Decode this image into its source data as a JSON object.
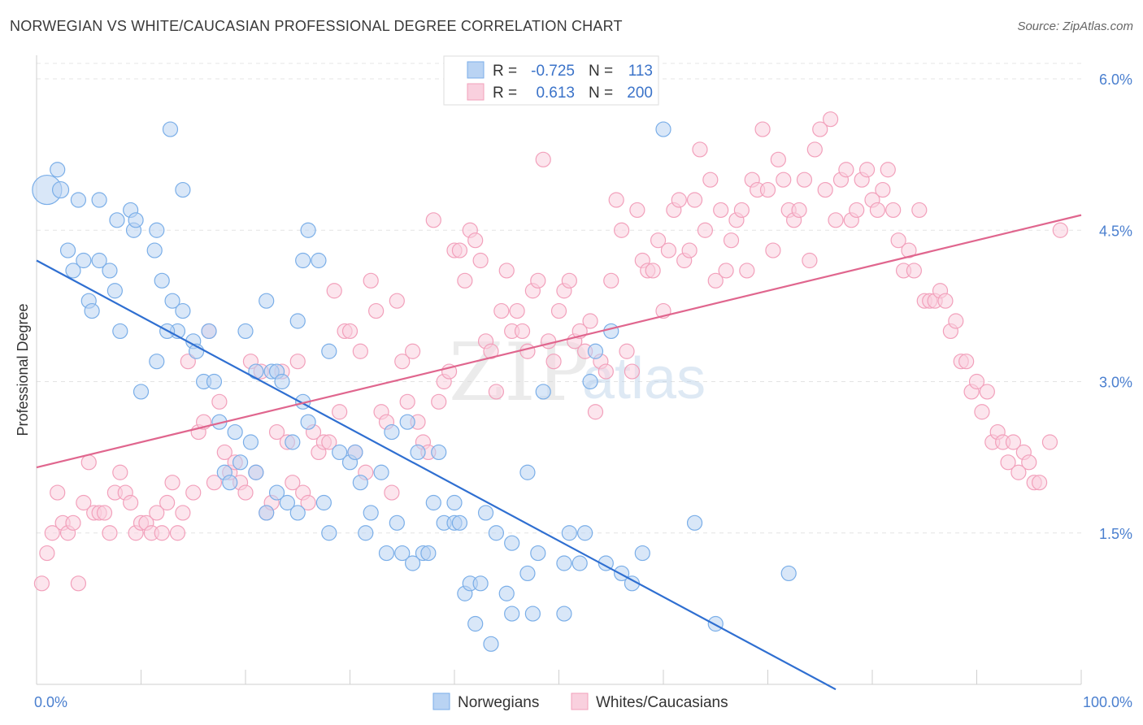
{
  "chart_data": {
    "type": "scatter",
    "title": "NORWEGIAN VS WHITE/CAUCASIAN PROFESSIONAL DEGREE CORRELATION CHART",
    "source": "Source: ZipAtlas.com",
    "ylabel": "Professional Degree",
    "xlim": [
      0,
      100
    ],
    "ylim": [
      0,
      6.2
    ],
    "x_tick_labels": [
      "0.0%",
      "100.0%"
    ],
    "y_ticks": [
      1.5,
      3.0,
      4.5,
      6.0
    ],
    "y_tick_labels": [
      "1.5%",
      "3.0%",
      "4.5%",
      "6.0%"
    ],
    "grid": "horizontal dashed",
    "watermark": {
      "zip": "ZIP",
      "atlas": "atlas"
    },
    "legend": {
      "placement": "top-center",
      "rows": [
        {
          "r_label": "R =",
          "r_value": "-0.725",
          "n_label": "N =",
          "n_value": "113"
        },
        {
          "r_label": "R =",
          "r_value": "0.613",
          "n_label": "N =",
          "n_value": "200"
        }
      ]
    },
    "series": [
      {
        "name": "Norwegians",
        "color": "#7aaee8",
        "fill": "#b9d3f3",
        "trend": {
          "x": [
            0,
            76.5
          ],
          "y": [
            4.2,
            -0.05
          ],
          "color": "#2f6fd1"
        },
        "points": [
          [
            1,
            4.9
          ],
          [
            2,
            5.1
          ],
          [
            2.3,
            4.9
          ],
          [
            4,
            4.8
          ],
          [
            6,
            4.8
          ],
          [
            3,
            4.3
          ],
          [
            3.5,
            4.1
          ],
          [
            4.5,
            4.2
          ],
          [
            6,
            4.2
          ],
          [
            7,
            4.1
          ],
          [
            5,
            3.8
          ],
          [
            5.3,
            3.7
          ],
          [
            7.5,
            3.9
          ],
          [
            8,
            3.5
          ],
          [
            7.7,
            4.6
          ],
          [
            9,
            4.7
          ],
          [
            9.3,
            4.5
          ],
          [
            9.5,
            4.6
          ],
          [
            11.5,
            4.5
          ],
          [
            11.3,
            4.3
          ],
          [
            12,
            4.0
          ],
          [
            13,
            3.8
          ],
          [
            14,
            3.7
          ],
          [
            13.5,
            3.5
          ],
          [
            15,
            3.4
          ],
          [
            15.3,
            3.3
          ],
          [
            16,
            3.0
          ],
          [
            16.5,
            3.5
          ],
          [
            17,
            3.0
          ],
          [
            10,
            2.9
          ],
          [
            11.5,
            3.2
          ],
          [
            12.5,
            3.5
          ],
          [
            12.8,
            5.5
          ],
          [
            14,
            4.9
          ],
          [
            20,
            3.5
          ],
          [
            21,
            3.1
          ],
          [
            22,
            3.8
          ],
          [
            22.5,
            3.1
          ],
          [
            25,
            3.6
          ],
          [
            25.5,
            4.2
          ],
          [
            26,
            4.5
          ],
          [
            27,
            4.2
          ],
          [
            28,
            3.3
          ],
          [
            23,
            3.1
          ],
          [
            23.5,
            3.0
          ],
          [
            25.5,
            2.8
          ],
          [
            19,
            2.5
          ],
          [
            20.5,
            2.4
          ],
          [
            21,
            2.1
          ],
          [
            17.5,
            2.6
          ],
          [
            18,
            2.1
          ],
          [
            18.5,
            2.0
          ],
          [
            19.5,
            2.2
          ],
          [
            22,
            1.7
          ],
          [
            23,
            1.9
          ],
          [
            24,
            1.8
          ],
          [
            24.5,
            2.4
          ],
          [
            25,
            1.7
          ],
          [
            26,
            2.6
          ],
          [
            27.5,
            1.8
          ],
          [
            28,
            1.5
          ],
          [
            29,
            2.3
          ],
          [
            30,
            2.2
          ],
          [
            30.5,
            2.3
          ],
          [
            31,
            2.0
          ],
          [
            31.5,
            1.5
          ],
          [
            32,
            1.7
          ],
          [
            33,
            2.1
          ],
          [
            33.5,
            1.3
          ],
          [
            34,
            2.5
          ],
          [
            34.5,
            1.6
          ],
          [
            35,
            1.3
          ],
          [
            35.5,
            2.6
          ],
          [
            36,
            1.2
          ],
          [
            36.5,
            2.3
          ],
          [
            37,
            1.3
          ],
          [
            37.5,
            1.3
          ],
          [
            38,
            1.8
          ],
          [
            38.5,
            2.3
          ],
          [
            39,
            1.6
          ],
          [
            40,
            1.6
          ],
          [
            40,
            1.8
          ],
          [
            40.5,
            1.6
          ],
          [
            41,
            0.9
          ],
          [
            41.5,
            1.0
          ],
          [
            42,
            0.6
          ],
          [
            42.5,
            1.0
          ],
          [
            43,
            1.7
          ],
          [
            43.5,
            0.4
          ],
          [
            44,
            1.5
          ],
          [
            45,
            0.9
          ],
          [
            45.5,
            0.7
          ],
          [
            45.5,
            1.4
          ],
          [
            47,
            1.1
          ],
          [
            47,
            2.1
          ],
          [
            47.5,
            0.7
          ],
          [
            48,
            1.3
          ],
          [
            48.5,
            2.9
          ],
          [
            50.5,
            0.7
          ],
          [
            50.5,
            1.2
          ],
          [
            51,
            1.5
          ],
          [
            52,
            1.2
          ],
          [
            52.5,
            1.5
          ],
          [
            53,
            3.0
          ],
          [
            53.5,
            3.3
          ],
          [
            54.5,
            1.2
          ],
          [
            55,
            3.5
          ],
          [
            56,
            1.1
          ],
          [
            57,
            1.0
          ],
          [
            58,
            1.3
          ],
          [
            60,
            5.5
          ],
          [
            63,
            1.6
          ],
          [
            65,
            0.6
          ],
          [
            72,
            1.1
          ]
        ],
        "sizes": {
          "0": 18,
          "2": 10
        }
      },
      {
        "name": "Whites/Caucasians",
        "color": "#f2a0bb",
        "fill": "#f9d0de",
        "trend": {
          "x": [
            0,
            100
          ],
          "y": [
            2.15,
            4.65
          ],
          "color": "#e0668e"
        },
        "points": [
          [
            0.5,
            1.0
          ],
          [
            1,
            1.3
          ],
          [
            1.5,
            1.5
          ],
          [
            2,
            1.9
          ],
          [
            2.5,
            1.6
          ],
          [
            3,
            1.5
          ],
          [
            3.5,
            1.6
          ],
          [
            4,
            1.0
          ],
          [
            4.5,
            1.8
          ],
          [
            5,
            2.2
          ],
          [
            5.5,
            1.7
          ],
          [
            6,
            1.7
          ],
          [
            6.5,
            1.7
          ],
          [
            7,
            1.5
          ],
          [
            7.5,
            1.9
          ],
          [
            8,
            2.1
          ],
          [
            8.5,
            1.9
          ],
          [
            9,
            1.8
          ],
          [
            9.5,
            1.5
          ],
          [
            10,
            1.6
          ],
          [
            10.5,
            1.6
          ],
          [
            11,
            1.5
          ],
          [
            11.5,
            1.7
          ],
          [
            12,
            1.5
          ],
          [
            12.5,
            1.8
          ],
          [
            13,
            2.0
          ],
          [
            13.5,
            1.5
          ],
          [
            14,
            1.7
          ],
          [
            14.5,
            3.2
          ],
          [
            15,
            1.9
          ],
          [
            15.5,
            2.5
          ],
          [
            16,
            2.6
          ],
          [
            16.5,
            3.5
          ],
          [
            17,
            2.0
          ],
          [
            17.5,
            2.8
          ],
          [
            18,
            2.3
          ],
          [
            18.5,
            2.1
          ],
          [
            19,
            2.2
          ],
          [
            19.5,
            2.0
          ],
          [
            20,
            1.9
          ],
          [
            20.5,
            3.2
          ],
          [
            21,
            2.1
          ],
          [
            21.5,
            3.1
          ],
          [
            22,
            1.7
          ],
          [
            22.5,
            1.8
          ],
          [
            23,
            2.5
          ],
          [
            23.5,
            3.1
          ],
          [
            24,
            2.4
          ],
          [
            24.5,
            2.0
          ],
          [
            25,
            3.2
          ],
          [
            25.5,
            1.9
          ],
          [
            26,
            1.8
          ],
          [
            26.5,
            2.5
          ],
          [
            27,
            2.3
          ],
          [
            27.5,
            2.4
          ],
          [
            28,
            2.4
          ],
          [
            28.5,
            3.9
          ],
          [
            29,
            2.7
          ],
          [
            29.5,
            3.5
          ],
          [
            30,
            3.5
          ],
          [
            30.5,
            2.3
          ],
          [
            31,
            3.3
          ],
          [
            31.5,
            2.1
          ],
          [
            32,
            4.0
          ],
          [
            32.5,
            3.7
          ],
          [
            33,
            2.7
          ],
          [
            33.5,
            2.6
          ],
          [
            34,
            1.9
          ],
          [
            34.5,
            3.8
          ],
          [
            35,
            3.2
          ],
          [
            35.5,
            2.8
          ],
          [
            36,
            3.3
          ],
          [
            36.5,
            2.6
          ],
          [
            37,
            2.4
          ],
          [
            37.5,
            2.3
          ],
          [
            38,
            4.6
          ],
          [
            38.5,
            2.8
          ],
          [
            39,
            3.0
          ],
          [
            39.5,
            3.1
          ],
          [
            40,
            4.3
          ],
          [
            40.5,
            4.3
          ],
          [
            41,
            4.0
          ],
          [
            41.5,
            4.5
          ],
          [
            42,
            4.4
          ],
          [
            42.5,
            4.2
          ],
          [
            43,
            3.4
          ],
          [
            43.5,
            3.3
          ],
          [
            44,
            2.9
          ],
          [
            44.5,
            3.7
          ],
          [
            45,
            4.1
          ],
          [
            45.5,
            3.5
          ],
          [
            46,
            3.7
          ],
          [
            46.5,
            3.5
          ],
          [
            47,
            3.3
          ],
          [
            47.5,
            3.9
          ],
          [
            48,
            4.0
          ],
          [
            48.5,
            5.2
          ],
          [
            49,
            3.4
          ],
          [
            49.5,
            3.2
          ],
          [
            50,
            3.7
          ],
          [
            50.5,
            3.9
          ],
          [
            51,
            4.0
          ],
          [
            51.5,
            3.4
          ],
          [
            52,
            3.5
          ],
          [
            52.5,
            3.3
          ],
          [
            53,
            3.6
          ],
          [
            53.5,
            2.7
          ],
          [
            54,
            3.2
          ],
          [
            54.5,
            3.1
          ],
          [
            55,
            4.0
          ],
          [
            55.5,
            4.8
          ],
          [
            56,
            4.5
          ],
          [
            56.5,
            3.3
          ],
          [
            57,
            3.1
          ],
          [
            57.5,
            4.7
          ],
          [
            58,
            4.2
          ],
          [
            58.5,
            4.1
          ],
          [
            59,
            4.1
          ],
          [
            59.5,
            4.4
          ],
          [
            60,
            3.7
          ],
          [
            60.5,
            4.3
          ],
          [
            61,
            4.7
          ],
          [
            61.5,
            4.8
          ],
          [
            62,
            4.2
          ],
          [
            62.5,
            4.3
          ],
          [
            63,
            4.8
          ],
          [
            63.5,
            5.3
          ],
          [
            64,
            4.5
          ],
          [
            64.5,
            5.0
          ],
          [
            65,
            4.0
          ],
          [
            65.5,
            4.7
          ],
          [
            66,
            4.1
          ],
          [
            66.5,
            4.4
          ],
          [
            67,
            4.6
          ],
          [
            67.5,
            4.7
          ],
          [
            68,
            4.1
          ],
          [
            68.5,
            5.0
          ],
          [
            69,
            4.9
          ],
          [
            69.5,
            5.5
          ],
          [
            70,
            4.9
          ],
          [
            70.5,
            4.3
          ],
          [
            71,
            5.2
          ],
          [
            71.5,
            5.0
          ],
          [
            72,
            4.7
          ],
          [
            72.5,
            4.6
          ],
          [
            73,
            4.7
          ],
          [
            73.5,
            5.0
          ],
          [
            74,
            4.2
          ],
          [
            74.5,
            5.3
          ],
          [
            75,
            5.5
          ],
          [
            75.5,
            4.9
          ],
          [
            76,
            5.6
          ],
          [
            76.5,
            4.6
          ],
          [
            77,
            5.0
          ],
          [
            77.5,
            5.1
          ],
          [
            78,
            4.6
          ],
          [
            78.5,
            4.7
          ],
          [
            79,
            5.0
          ],
          [
            79.5,
            5.1
          ],
          [
            80,
            4.8
          ],
          [
            80.5,
            4.7
          ],
          [
            81,
            4.9
          ],
          [
            81.5,
            5.1
          ],
          [
            82,
            4.7
          ],
          [
            82.5,
            4.4
          ],
          [
            83,
            4.1
          ],
          [
            83.5,
            4.3
          ],
          [
            84,
            4.1
          ],
          [
            84.5,
            4.7
          ],
          [
            85,
            3.8
          ],
          [
            85.5,
            3.8
          ],
          [
            86,
            3.8
          ],
          [
            86.5,
            3.9
          ],
          [
            87,
            3.8
          ],
          [
            87.5,
            3.5
          ],
          [
            88,
            3.6
          ],
          [
            88.5,
            3.2
          ],
          [
            89,
            3.2
          ],
          [
            89.5,
            2.9
          ],
          [
            90,
            3.0
          ],
          [
            90.5,
            2.7
          ],
          [
            91,
            2.9
          ],
          [
            91.5,
            2.4
          ],
          [
            92,
            2.5
          ],
          [
            92.5,
            2.4
          ],
          [
            93,
            2.2
          ],
          [
            93.5,
            2.4
          ],
          [
            94,
            2.1
          ],
          [
            94.5,
            2.3
          ],
          [
            95,
            2.2
          ],
          [
            95.5,
            2.0
          ],
          [
            96,
            2.0
          ],
          [
            97,
            2.4
          ],
          [
            98,
            4.5
          ],
          [
            40.5,
            6.0
          ]
        ]
      }
    ],
    "bottom_legend": [
      "Norwegians",
      "Whites/Caucasians"
    ]
  }
}
